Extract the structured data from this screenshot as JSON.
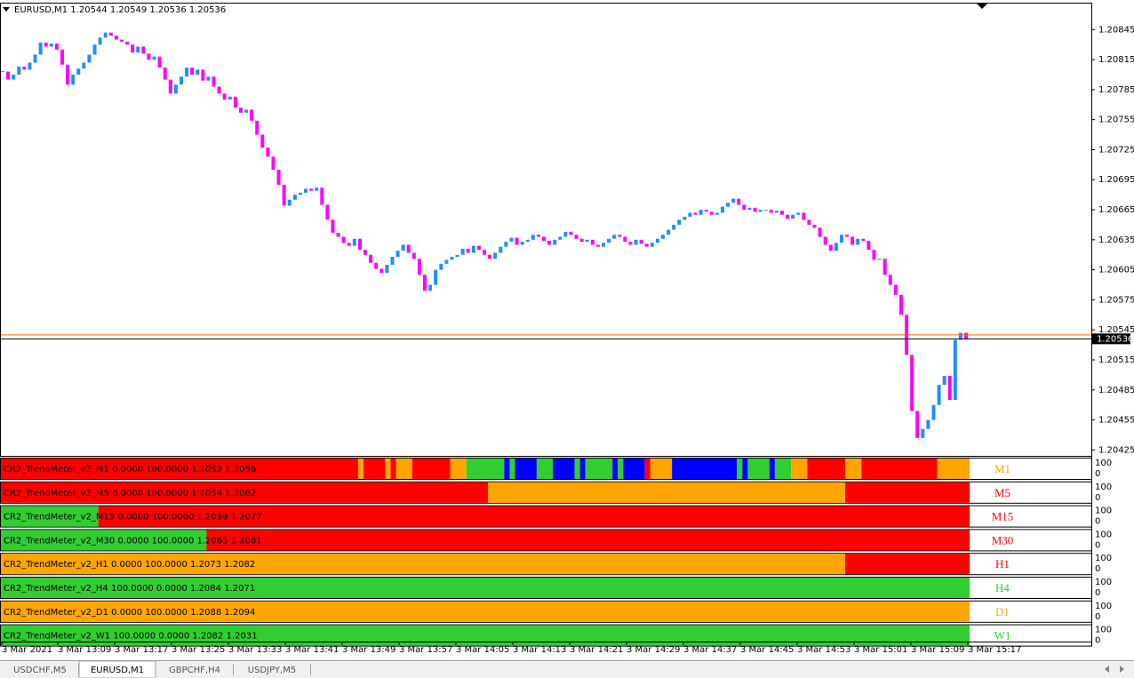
{
  "chart_data": {
    "type": "candlestick",
    "title": "EURUSD,M1  1.20544 1.20549 1.20536 1.20536",
    "up_color": "#1e90ff",
    "down_color": "#ff00ff",
    "close": [
      1.20803,
      1.20795,
      1.208,
      1.20808,
      1.20805,
      1.20812,
      1.2082,
      1.20832,
      1.20828,
      1.20831,
      1.20825,
      1.2081,
      1.2079,
      1.208,
      1.20806,
      1.20812,
      1.2082,
      1.2083,
      1.20837,
      1.20842,
      1.20839,
      1.20835,
      1.20833,
      1.2083,
      1.20822,
      1.20828,
      1.20821,
      1.20815,
      1.20818,
      1.20807,
      1.20795,
      1.20781,
      1.2079,
      1.20798,
      1.20807,
      1.208,
      1.20805,
      1.20794,
      1.20798,
      1.20788,
      1.20781,
      1.20775,
      1.20778,
      1.20767,
      1.20762,
      1.20765,
      1.20754,
      1.2074,
      1.20727,
      1.20718,
      1.20705,
      1.2069,
      1.20669,
      1.20675,
      1.2068,
      1.20682,
      1.20686,
      1.20684,
      1.20687,
      1.2067,
      1.20655,
      1.20642,
      1.20638,
      1.20632,
      1.20629,
      1.20636,
      1.20625,
      1.2062,
      1.20612,
      1.20606,
      1.20602,
      1.2061,
      1.20618,
      1.20624,
      1.2063,
      1.20622,
      1.20616,
      1.206,
      1.20584,
      1.2059,
      1.20605,
      1.20611,
      1.20615,
      1.20618,
      1.2062,
      1.20626,
      1.20622,
      1.20629,
      1.20625,
      1.2062,
      1.20616,
      1.20622,
      1.20628,
      1.20633,
      1.20637,
      1.2063,
      1.20633,
      1.20635,
      1.2064,
      1.20638,
      1.20634,
      1.2063,
      1.20635,
      1.20638,
      1.20643,
      1.2064,
      1.20636,
      1.20633,
      1.20635,
      1.2063,
      1.20628,
      1.20632,
      1.20636,
      1.2064,
      1.20638,
      1.20633,
      1.2063,
      1.20635,
      1.20631,
      1.20628,
      1.20632,
      1.20636,
      1.2064,
      1.20645,
      1.2065,
      1.20655,
      1.20658,
      1.20662,
      1.2066,
      1.20665,
      1.20663,
      1.2066,
      1.20662,
      1.20668,
      1.20672,
      1.20676,
      1.2067,
      1.20665,
      1.20667,
      1.20663,
      1.20665,
      1.20665,
      1.20662,
      1.20664,
      1.2066,
      1.20656,
      1.2066,
      1.20662,
      1.20655,
      1.2065,
      1.20647,
      1.20638,
      1.2063,
      1.20624,
      1.20632,
      1.2064,
      1.20638,
      1.2063,
      1.20636,
      1.20634,
      1.20625,
      1.20615,
      1.20616,
      1.206,
      1.2059,
      1.2058,
      1.2056,
      1.2052,
      1.20464,
      1.20437,
      1.20446,
      1.20455,
      1.2047,
      1.2049,
      1.20499,
      1.20475,
      1.20535,
      1.20542,
      1.20536
    ],
    "ylim": [
      1.2042,
      1.20871
    ],
    "yticks": [
      1.20845,
      1.20815,
      1.20785,
      1.20755,
      1.20725,
      1.20695,
      1.20665,
      1.20635,
      1.20605,
      1.20575,
      1.20545,
      1.20515,
      1.20485,
      1.20455,
      1.20425
    ],
    "current_price": 1.20536,
    "ask_line": 1.2054,
    "ask_color": "#ff6600",
    "x_labels": [
      "3 Mar 2021",
      "3 Mar 13:09",
      "3 Mar 13:17",
      "3 Mar 13:25",
      "3 Mar 13:33",
      "3 Mar 13:41",
      "3 Mar 13:49",
      "3 Mar 13:57",
      "3 Mar 14:05",
      "3 Mar 14:13",
      "3 Mar 14:21",
      "3 Mar 14:29",
      "3 Mar 14:37",
      "3 Mar 14:45",
      "3 Mar 14:53",
      "3 Mar 15:01",
      "3 Mar 15:09",
      "3 Mar 15:17"
    ]
  },
  "indicator_scale": {
    "max": 100,
    "min": 0
  },
  "indicators": [
    {
      "label": "CR2_TrendMeter_v2_M1 0.0000 100.0000 1.2052 1.2056",
      "name": "M1",
      "name_color": "#ffa500",
      "segments": [
        {
          "color": "#ff0000",
          "bars": 66
        },
        {
          "color": "#ffa500",
          "bars": 1
        },
        {
          "color": "#ff0000",
          "bars": 4
        },
        {
          "color": "#ffa500",
          "bars": 1
        },
        {
          "color": "#ff0000",
          "bars": 1
        },
        {
          "color": "#ffa500",
          "bars": 3
        },
        {
          "color": "#ff0000",
          "bars": 7
        },
        {
          "color": "#ffa500",
          "bars": 3
        },
        {
          "color": "#32cd32",
          "bars": 7
        },
        {
          "color": "#0000ff",
          "bars": 1
        },
        {
          "color": "#32cd32",
          "bars": 1
        },
        {
          "color": "#0000ff",
          "bars": 4
        },
        {
          "color": "#32cd32",
          "bars": 3
        },
        {
          "color": "#0000ff",
          "bars": 4
        },
        {
          "color": "#32cd32",
          "bars": 1
        },
        {
          "color": "#0000ff",
          "bars": 1
        },
        {
          "color": "#32cd32",
          "bars": 5
        },
        {
          "color": "#0000ff",
          "bars": 1
        },
        {
          "color": "#32cd32",
          "bars": 1
        },
        {
          "color": "#0000ff",
          "bars": 4
        },
        {
          "color": "#ff0000",
          "bars": 1
        },
        {
          "color": "#ffa500",
          "bars": 4
        },
        {
          "color": "#0000ff",
          "bars": 12
        },
        {
          "color": "#32cd32",
          "bars": 1
        },
        {
          "color": "#0000ff",
          "bars": 1
        },
        {
          "color": "#32cd32",
          "bars": 4
        },
        {
          "color": "#0000ff",
          "bars": 1
        },
        {
          "color": "#32cd32",
          "bars": 3
        },
        {
          "color": "#ffa500",
          "bars": 3
        },
        {
          "color": "#ff0000",
          "bars": 7
        },
        {
          "color": "#ffa500",
          "bars": 3
        },
        {
          "color": "#ff0000",
          "bars": 14
        },
        {
          "color": "#ffa500",
          "bars": 6
        }
      ]
    },
    {
      "label": "CR2_TrendMeter_v2_M5 0.0000 100.0000 1.2054 1.2062",
      "name": "M5",
      "name_color": "#ff0000",
      "segments": [
        {
          "color": "#ff0000",
          "bars": 90
        },
        {
          "color": "#ffa500",
          "bars": 66
        },
        {
          "color": "#ff0000",
          "bars": 23
        }
      ]
    },
    {
      "label": "CR2_TrendMeter_v2_M15 0.0000 100.0000 1.2059 1.2077",
      "name": "M15",
      "name_color": "#ff0000",
      "segments": [
        {
          "color": "#32cd32",
          "bars": 18
        },
        {
          "color": "#ff0000",
          "bars": 161
        }
      ]
    },
    {
      "label": "CR2_TrendMeter_v2_M30 0.0000 100.0000 1.2065 1.2081",
      "name": "M30",
      "name_color": "#ff0000",
      "segments": [
        {
          "color": "#32cd32",
          "bars": 38
        },
        {
          "color": "#ff0000",
          "bars": 141
        }
      ]
    },
    {
      "label": "CR2_TrendMeter_v2_H1 0.0000 100.0000 1.2073 1.2082",
      "name": "H1",
      "name_color": "#ff0000",
      "segments": [
        {
          "color": "#ffa500",
          "bars": 156
        },
        {
          "color": "#ff0000",
          "bars": 23
        }
      ]
    },
    {
      "label": "CR2_TrendMeter_v2_H4 100.0000 0.0000 1.2084 1.2071",
      "name": "H4",
      "name_color": "#32cd32",
      "segments": [
        {
          "color": "#32cd32",
          "bars": 179
        }
      ]
    },
    {
      "label": "CR2_TrendMeter_v2_D1 0.0000 100.0000 1.2088 1.2094",
      "name": "D1",
      "name_color": "#ffa500",
      "segments": [
        {
          "color": "#ffa500",
          "bars": 179
        }
      ]
    },
    {
      "label": "CR2_TrendMeter_v2_W1 100.0000 0.0000 1.2082 1.2031",
      "name": "W1",
      "name_color": "#32cd32",
      "segments": [
        {
          "color": "#32cd32",
          "bars": 179
        }
      ]
    }
  ],
  "tabs": {
    "items": [
      "USDCHF,M5",
      "EURUSD,M1",
      "GBPCHF,H4",
      "USDJPY,M5"
    ],
    "active": "EURUSD,M1"
  }
}
